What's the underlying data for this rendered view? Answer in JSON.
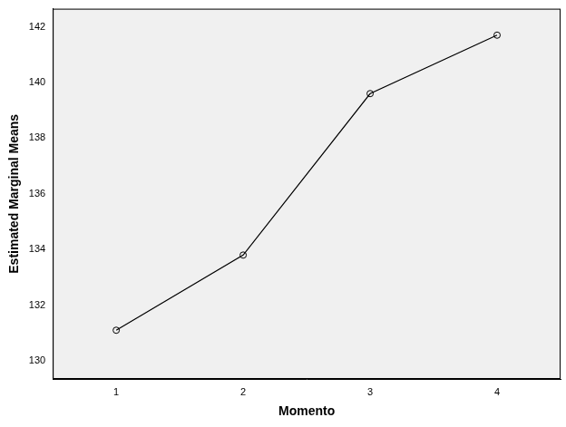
{
  "chart_data": {
    "type": "line",
    "x_label": "Momento",
    "y_label": "Estimated Marginal Means",
    "categories": [
      "1",
      "2",
      "3",
      "4"
    ],
    "values": [
      131.1,
      133.8,
      139.6,
      141.7
    ],
    "color": "#000000",
    "marker": "circle",
    "ylim": [
      129.35,
      142.65
    ],
    "yticks": [
      130,
      132,
      134,
      136,
      138,
      140,
      142
    ],
    "grid": false
  }
}
